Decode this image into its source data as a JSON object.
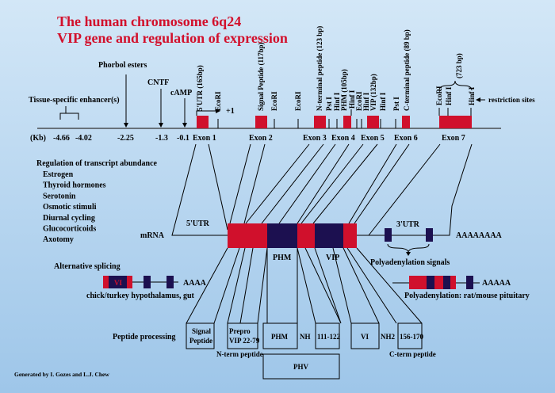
{
  "title": {
    "line1": "The human chromosome 6q24",
    "line2": "VIP gene and regulation of expression"
  },
  "colors": {
    "title": "#d2102c",
    "exon": "#d0102c",
    "peptide_coding": "#1c1050",
    "background_top": "#d3e7f7",
    "background_bottom": "#9ec6e9"
  },
  "regulatory_elements": {
    "enhancer": "Tissue-specific enhancer(s)",
    "phorbol": "Phorbol esters",
    "cntf": "CNTF",
    "camp": "cAMP"
  },
  "axis": {
    "unit": "(Kb)",
    "ticks": [
      "-4.66",
      "-4.02",
      "-2.25",
      "-1.3",
      "-0.1"
    ]
  },
  "plus_one": "+1",
  "exons": [
    "Exon 1",
    "Exon 2",
    "Exon 3",
    "Exon 4",
    "Exon 5",
    "Exon 6",
    "Exon 7"
  ],
  "site_labels": [
    "5'UTR (165bp)",
    "EcoRI",
    "Signal Peptide (117bp)",
    "EcoRI",
    "EcoRI",
    "N-terminal peptide (123 bp)",
    "Pst I",
    "Hinf I",
    "PHM (105bp)",
    "Hinf I",
    "EcoRI",
    "Hinf I",
    "VIP (132bp)",
    "Hinf I",
    "Pst I",
    "C-terminal peptide (89 bp)",
    "EcoRI",
    "Hinf I",
    "Hinf I"
  ],
  "exon7_size": "(723 bp)",
  "restriction_sites": "restriction sites",
  "regulation": {
    "heading": "Regulation of transcript abundance",
    "items": [
      "Estrogen",
      "Thyroid hormones",
      "Serotonin",
      "Osmotic stimuli",
      "Diurnal cycling",
      "Glucocorticoids",
      "Axotomy"
    ]
  },
  "mrna": {
    "label": "mRNA",
    "utr5": "5'UTR",
    "utr3": "3'UTR",
    "polya": "AAAAAAAA",
    "phm": "PHM",
    "vip": "VIP",
    "polya_signals": "Polyadenylation signals"
  },
  "alt_splicing": {
    "heading": "Alternative splicing",
    "vi": "VI",
    "polya": "AAAA",
    "caption": "chick/turkey hypothalamus, gut"
  },
  "rat_mouse": {
    "polya": "AAAAA",
    "caption": "Polyadenylation: rat/mouse pituitary"
  },
  "peptide_processing": {
    "heading": "Peptide processing",
    "signal": [
      "Signal",
      "Peptide"
    ],
    "prepro": [
      "Prepro",
      "VIP 22-79"
    ],
    "phm": "PHM",
    "nh": "NH",
    "p111": "111-122",
    "vi": "VI",
    "nh2": "NH2",
    "p156": "156-170",
    "phv": "PHV",
    "nterm": "N-term peptide",
    "cterm": "C-term peptide"
  },
  "footer": "Generated by I. Gozes and L.J. Chew"
}
